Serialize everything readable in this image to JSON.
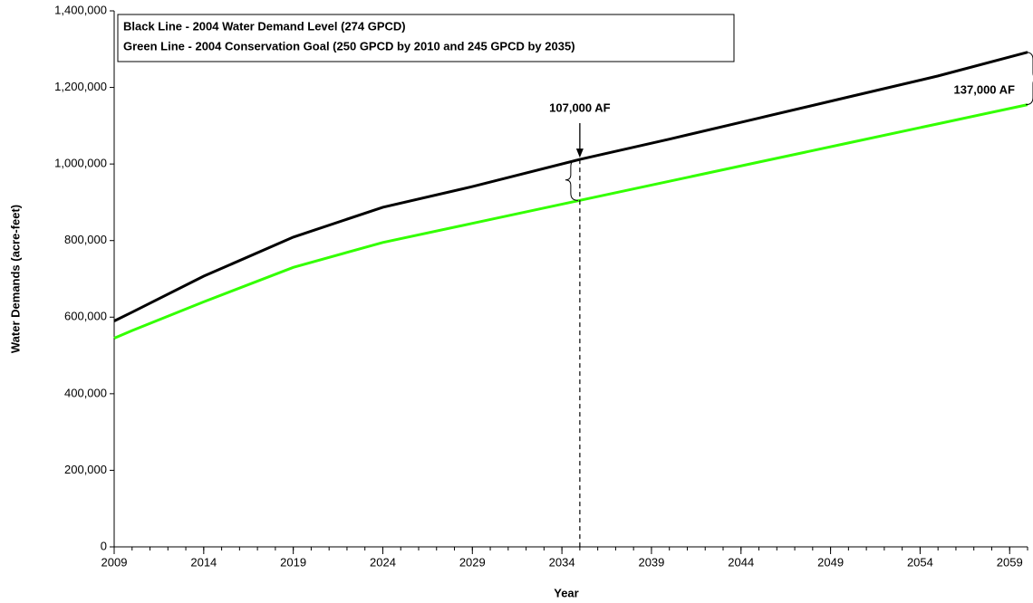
{
  "chart_data": {
    "type": "line",
    "x": [
      2009,
      2010,
      2014,
      2019,
      2024,
      2029,
      2035,
      2040,
      2045,
      2050,
      2055,
      2060
    ],
    "series": [
      {
        "name": "Black Line - 2004 Water Demand Level (274 GPCD)",
        "color": "#000000",
        "values": [
          590000,
          613000,
          707000,
          809000,
          887000,
          941000,
          1012000,
          1065000,
          1120000,
          1175000,
          1230000,
          1292000
        ]
      },
      {
        "name": "Green Line - 2004 Conservation Goal (250 GPCD by 2010 and 245 GPCD by 2035)",
        "color": "#33ff00",
        "values": [
          545000,
          565000,
          640000,
          730000,
          795000,
          845000,
          905000,
          955000,
          1005000,
          1055000,
          1105000,
          1155000
        ]
      }
    ],
    "xlabel": "Year",
    "ylabel": "Water Demands (acre-feet)",
    "xlim": [
      2009,
      2060
    ],
    "xticks": [
      2009,
      2014,
      2019,
      2024,
      2029,
      2034,
      2039,
      2044,
      2049,
      2054,
      2059
    ],
    "ylim": [
      0,
      1400000
    ],
    "yticks": [
      0,
      {
        "value": 200000,
        "label": "200,000"
      },
      {
        "value": 400000,
        "label": "400,000"
      },
      {
        "value": 600000,
        "label": "600,000"
      },
      {
        "value": 800000,
        "label": "800,000"
      },
      {
        "value": 1000000,
        "label": "1,000,000"
      },
      {
        "value": 1200000,
        "label": "1,200,000"
      },
      {
        "value": 1400000,
        "label": "1,400,000"
      }
    ],
    "annotations": [
      {
        "text": "107,000 AF",
        "x": 2035
      },
      {
        "text": "137,000 AF",
        "x": 2060
      }
    ]
  }
}
